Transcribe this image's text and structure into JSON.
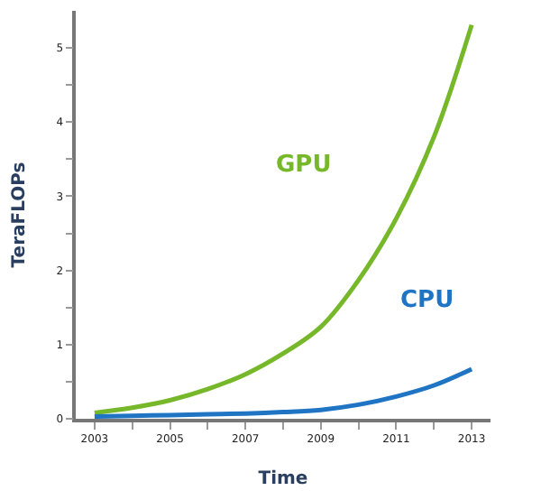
{
  "chart_data": {
    "type": "line",
    "xlabel": "Time",
    "ylabel": "TeraFLOPs",
    "xlim": [
      2002.5,
      2013.5
    ],
    "ylim": [
      0,
      5.5
    ],
    "xticks": [
      2003,
      {
        "value": 2004,
        "label": null
      },
      2005,
      {
        "value": 2006,
        "label": null
      },
      2007,
      {
        "value": 2008,
        "label": null
      },
      2009,
      {
        "value": 2010,
        "label": null
      },
      2011,
      {
        "value": 2012,
        "label": null
      },
      2013
    ],
    "yticks": [
      0,
      {
        "value": 0.5,
        "label": null
      },
      1,
      {
        "value": 1.5,
        "label": null
      },
      2,
      {
        "value": 2.5,
        "label": null
      },
      3,
      {
        "value": 3.5,
        "label": null
      },
      4,
      {
        "value": 4.5,
        "label": null
      },
      5
    ],
    "x": [
      2003,
      2004,
      2005,
      2006,
      2007,
      2008,
      2009,
      2010,
      2011,
      2012,
      2013
    ],
    "series": [
      {
        "name": "GPU",
        "color": "#76b82a",
        "values": [
          0.08,
          0.15,
          0.25,
          0.4,
          0.6,
          0.88,
          1.24,
          1.87,
          2.7,
          3.8,
          5.31
        ]
      },
      {
        "name": "CPU",
        "color": "#1f74c4",
        "values": [
          0.03,
          0.04,
          0.05,
          0.06,
          0.07,
          0.09,
          0.12,
          0.19,
          0.3,
          0.45,
          0.67
        ]
      }
    ],
    "legend": false,
    "marker": "none",
    "line_style": "solid"
  }
}
